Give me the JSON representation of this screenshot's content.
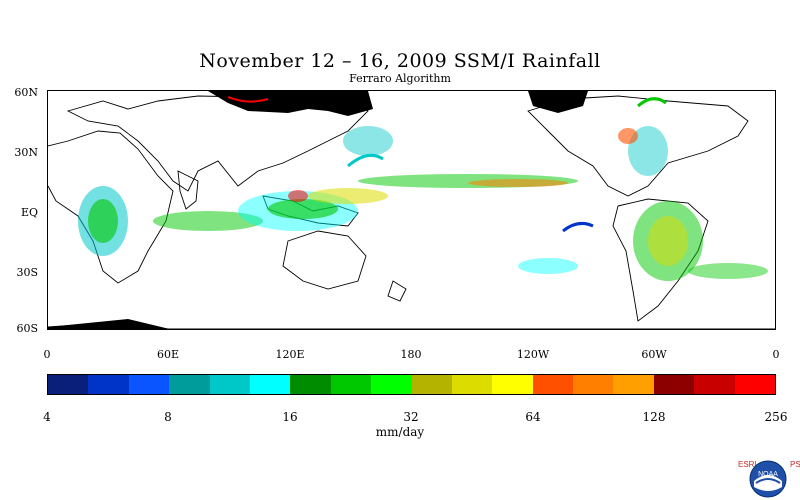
{
  "title": "November 12 – 16, 2009 SSM/I Rainfall",
  "subtitle": "Ferraro Algorithm",
  "lat_labels": [
    "60N",
    "30N",
    "EQ",
    "30S",
    "60S"
  ],
  "lon_labels": [
    "0",
    "60E",
    "120E",
    "180",
    "120W",
    "60W",
    "0"
  ],
  "colorbar": {
    "labels": [
      "4",
      "8",
      "16",
      "32",
      "64",
      "128",
      "256"
    ],
    "units": "mm/day",
    "colors": [
      "#0a1f7a",
      "#0033c8",
      "#0a55ff",
      "#009b9b",
      "#00c8c8",
      "#00ffff",
      "#008c00",
      "#00c800",
      "#00ff00",
      "#b4b400",
      "#dcdc00",
      "#ffff00",
      "#ff5000",
      "#ff8000",
      "#ffa000",
      "#8c0000",
      "#c80000",
      "#ff0000"
    ]
  },
  "logo": {
    "left_text": "ESRL",
    "right_text": "PSD",
    "center_text": "NOAA"
  }
}
